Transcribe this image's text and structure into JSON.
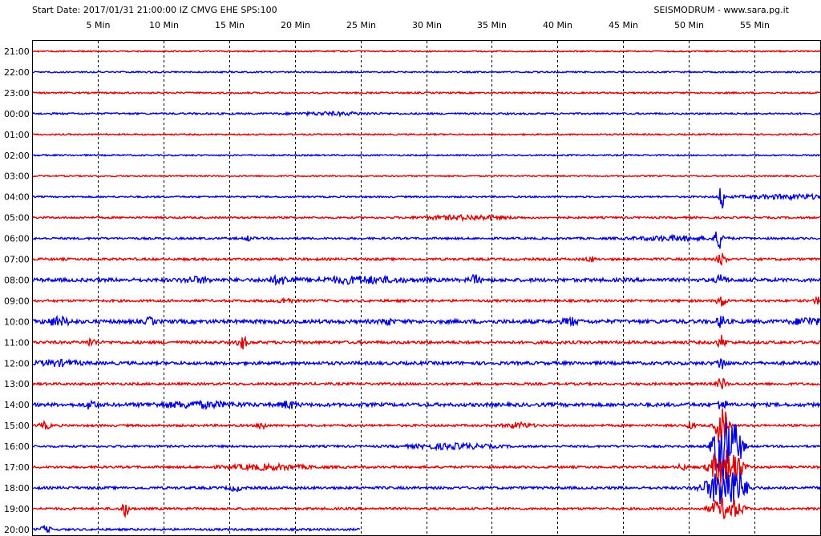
{
  "header": {
    "start": "Start Date: 2017/01/31 21:00:00 IZ CMVG EHE SPS:100",
    "source": "SEISMODRUM - www.sara.pg.it"
  },
  "colors": {
    "odd": "#dd0000",
    "even": "#0000dd",
    "grid": "#000000",
    "frame": "#000000"
  },
  "chart_data": {
    "type": "line",
    "title": "",
    "x_unit": "Min",
    "xlim": [
      0,
      60
    ],
    "x_ticks": [
      5,
      10,
      15,
      20,
      25,
      30,
      35,
      40,
      45,
      50,
      55
    ],
    "x_tick_labels": [
      "5 Min",
      "10 Min",
      "15 Min",
      "20 Min",
      "25 Min",
      "30 Min",
      "35 Min",
      "40 Min",
      "45 Min",
      "50 Min",
      "55 Min"
    ],
    "rows": [
      {
        "label": "21:00",
        "color": "red",
        "end": 60,
        "noise": 0.8,
        "events": []
      },
      {
        "label": "22:00",
        "color": "blue",
        "end": 60,
        "noise": 0.9,
        "events": []
      },
      {
        "label": "23:00",
        "color": "red",
        "end": 60,
        "noise": 1.0,
        "events": []
      },
      {
        "label": "00:00",
        "color": "blue",
        "end": 60,
        "noise": 1.1,
        "events": [
          [
            23,
            3,
            1.5
          ]
        ]
      },
      {
        "label": "01:00",
        "color": "red",
        "end": 60,
        "noise": 0.9,
        "events": []
      },
      {
        "label": "02:00",
        "color": "blue",
        "end": 60,
        "noise": 0.9,
        "events": []
      },
      {
        "label": "03:00",
        "color": "red",
        "end": 60,
        "noise": 0.8,
        "events": []
      },
      {
        "label": "04:00",
        "color": "blue",
        "end": 60,
        "noise": 1.0,
        "events": [
          [
            58,
            4,
            2.5
          ],
          [
            52.5,
            0.15,
            22
          ]
        ]
      },
      {
        "label": "05:00",
        "color": "red",
        "end": 60,
        "noise": 1.2,
        "events": [
          [
            33,
            3,
            2.5
          ]
        ]
      },
      {
        "label": "06:00",
        "color": "blue",
        "end": 60,
        "noise": 1.3,
        "events": [
          [
            49,
            3,
            2.5
          ],
          [
            52.3,
            0.3,
            12
          ],
          [
            16.5,
            0.3,
            3
          ]
        ]
      },
      {
        "label": "07:00",
        "color": "red",
        "end": 60,
        "noise": 1.5,
        "events": [
          [
            52.5,
            0.3,
            8
          ],
          [
            42.5,
            0.3,
            3
          ]
        ]
      },
      {
        "label": "08:00",
        "color": "blue",
        "end": 60,
        "noise": 2.2,
        "events": [
          [
            25,
            3,
            3.5
          ],
          [
            19,
            1,
            4
          ],
          [
            12.5,
            1,
            3
          ],
          [
            33.7,
            0.4,
            5
          ],
          [
            52.5,
            0.3,
            8
          ]
        ]
      },
      {
        "label": "09:00",
        "color": "red",
        "end": 60,
        "noise": 1.5,
        "events": [
          [
            59.8,
            0.3,
            4
          ],
          [
            19.3,
            0.5,
            3
          ],
          [
            52.5,
            0.3,
            8
          ]
        ]
      },
      {
        "label": "10:00",
        "color": "blue",
        "end": 60,
        "noise": 2.4,
        "events": [
          [
            2,
            0.8,
            5
          ],
          [
            9,
            0.3,
            4.5
          ],
          [
            27,
            0.4,
            4
          ],
          [
            41,
            0.5,
            4
          ],
          [
            59,
            1,
            4
          ],
          [
            52.5,
            0.3,
            8
          ]
        ]
      },
      {
        "label": "11:00",
        "color": "red",
        "end": 60,
        "noise": 1.8,
        "events": [
          [
            16,
            0.3,
            9
          ],
          [
            4.5,
            0.3,
            5
          ],
          [
            52.5,
            0.3,
            8
          ]
        ]
      },
      {
        "label": "12:00",
        "color": "blue",
        "end": 60,
        "noise": 2.0,
        "events": [
          [
            2,
            1.5,
            3
          ],
          [
            52.5,
            0.3,
            8
          ]
        ]
      },
      {
        "label": "13:00",
        "color": "red",
        "end": 60,
        "noise": 1.5,
        "events": [
          [
            52.5,
            0.3,
            8
          ]
        ]
      },
      {
        "label": "14:00",
        "color": "blue",
        "end": 60,
        "noise": 2.2,
        "events": [
          [
            12.5,
            3,
            3
          ],
          [
            4.5,
            0.4,
            5
          ],
          [
            19.5,
            0.6,
            4
          ],
          [
            52.5,
            0.3,
            8
          ]
        ]
      },
      {
        "label": "15:00",
        "color": "red",
        "end": 60,
        "noise": 1.4,
        "events": [
          [
            1,
            0.4,
            4
          ],
          [
            17.5,
            0.3,
            5
          ],
          [
            37,
            1,
            3
          ],
          [
            50.2,
            0.3,
            4
          ],
          [
            52.5,
            0.4,
            30
          ]
        ]
      },
      {
        "label": "16:00",
        "color": "blue",
        "end": 60,
        "noise": 1.3,
        "events": [
          [
            32,
            3,
            3
          ],
          [
            52.5,
            0.6,
            45
          ],
          [
            53.6,
            0.5,
            26
          ]
        ]
      },
      {
        "label": "17:00",
        "color": "red",
        "end": 60,
        "noise": 1.4,
        "events": [
          [
            18,
            3,
            3
          ],
          [
            49.5,
            0.3,
            4
          ],
          [
            52.5,
            0.8,
            26
          ],
          [
            53.6,
            0.6,
            16
          ]
        ]
      },
      {
        "label": "18:00",
        "color": "blue",
        "end": 60,
        "noise": 1.6,
        "events": [
          [
            52.5,
            1.2,
            22
          ],
          [
            53.6,
            0.8,
            14
          ],
          [
            15.5,
            0.5,
            3
          ]
        ]
      },
      {
        "label": "19:00",
        "color": "red",
        "end": 60,
        "noise": 1.4,
        "events": [
          [
            7.1,
            0.3,
            9
          ],
          [
            52.5,
            0.8,
            12
          ],
          [
            53.6,
            0.6,
            8
          ]
        ]
      },
      {
        "label": "20:00",
        "color": "blue",
        "end": 25,
        "noise": 1.3,
        "events": [
          [
            1,
            0.4,
            4
          ],
          [
            52.5,
            0.6,
            18
          ],
          [
            53.6,
            0.5,
            14
          ]
        ]
      }
    ]
  }
}
